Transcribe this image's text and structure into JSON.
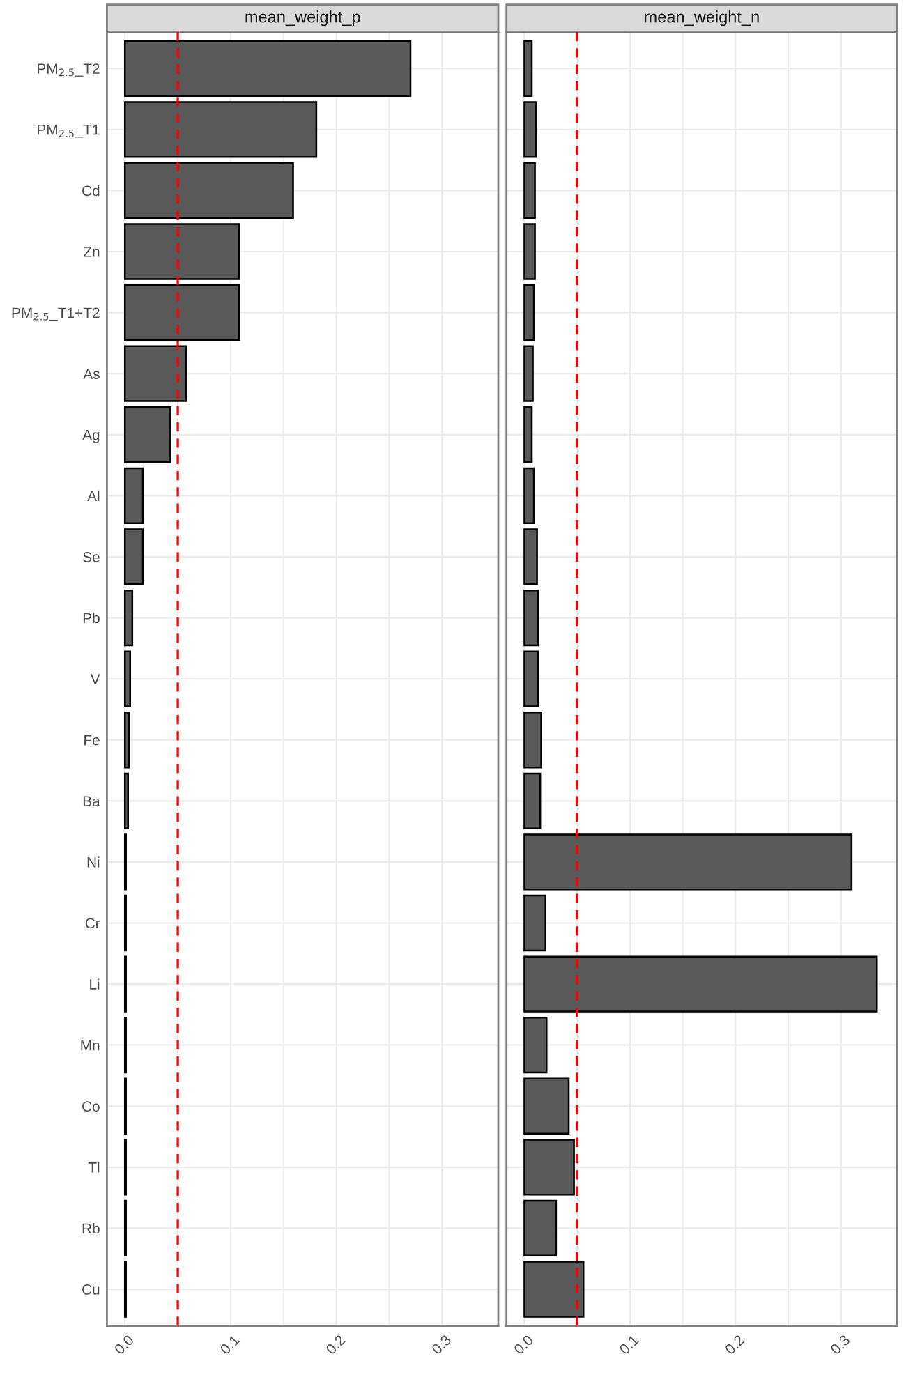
{
  "chart_data": [
    {
      "type": "bar",
      "orientation": "horizontal",
      "title": "mean_weight_p",
      "categories": [
        "PM$_{2.5}$_T2",
        "PM$_{2.5}$_T1",
        "Cd",
        "Zn",
        "PM$_{2.5}$_T1+T2",
        "As",
        "Ag",
        "Al",
        "Se",
        "Pb",
        "V",
        "Fe",
        "Ba",
        "Ni",
        "Cr",
        "Li",
        "Mn",
        "Co",
        "Tl",
        "Rb",
        "Cu"
      ],
      "values": [
        0.27,
        0.181,
        0.159,
        0.108,
        0.108,
        0.058,
        0.043,
        0.017,
        0.017,
        0.007,
        0.005,
        0.004,
        0.003,
        0.001,
        0.001,
        0.001,
        0.001,
        0.001,
        0.001,
        0.001,
        0.001
      ],
      "color": "#595959",
      "xlim": [
        -0.017,
        0.353
      ],
      "xticks": [
        {
          "value": 0.0,
          "label": "0.0"
        },
        {
          "value": 0.05,
          "label": null
        },
        0.1,
        {
          "value": 0.15,
          "label": null
        },
        0.2,
        {
          "value": 0.25,
          "label": null
        },
        0.3
      ],
      "ref_lines": [
        {
          "axis": "x",
          "value": 0.05,
          "color": "#ff0000",
          "line_style": "dashed"
        }
      ],
      "grid": true,
      "legend": false
    },
    {
      "type": "bar",
      "orientation": "horizontal",
      "title": "mean_weight_n",
      "values": [
        0.007,
        0.011,
        0.01,
        0.01,
        0.009,
        0.008,
        0.007,
        0.009,
        0.012,
        0.013,
        0.013,
        0.016,
        0.015,
        0.31,
        0.02,
        0.334,
        0.021,
        0.042,
        0.047,
        0.03,
        0.056
      ],
      "color": "#595959",
      "xlim": [
        -0.017,
        0.353
      ],
      "xticks": [
        {
          "value": 0.0,
          "label": "0.0"
        },
        {
          "value": 0.05,
          "label": null
        },
        0.1,
        {
          "value": 0.15,
          "label": null
        },
        0.2,
        {
          "value": 0.25,
          "label": null
        },
        0.3
      ],
      "ref_lines": [
        {
          "axis": "x",
          "value": 0.05,
          "color": "#ff0000",
          "line_style": "dashed"
        }
      ],
      "grid": true,
      "legend": false,
      "tick_labels": "x"
    }
  ]
}
